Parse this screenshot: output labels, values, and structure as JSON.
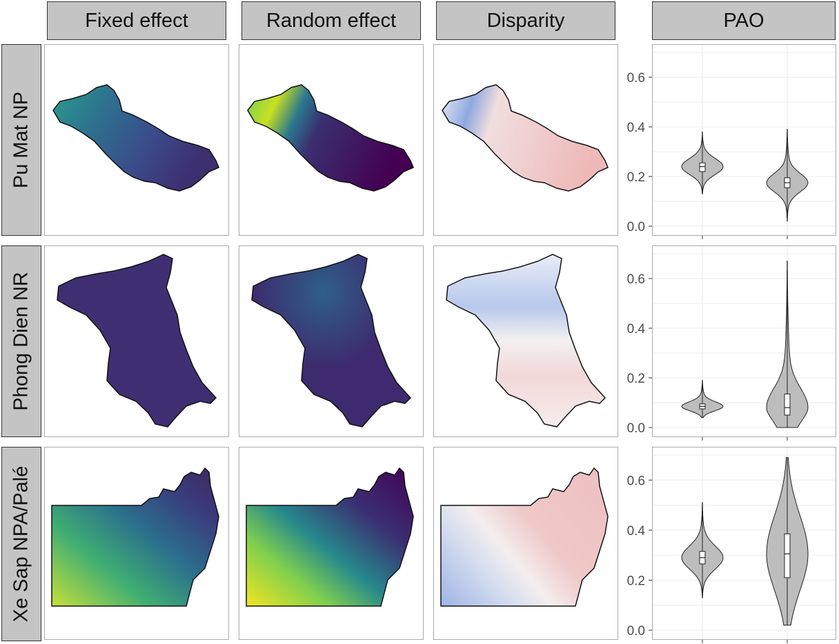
{
  "columns": [
    "Fixed effect",
    "Random effect",
    "Disparity",
    "PAO"
  ],
  "rows": [
    "Pu Mat NP",
    "Phong Dien NR",
    "Xe Sap NPA/Palé"
  ],
  "colors": {
    "strip_fill": "#c4c4c4",
    "viridis_low": "#440154",
    "viridis_mid": "#21908c",
    "viridis_high": "#fde725",
    "disparity_low": "#6a8fd8",
    "disparity_mid": "#f7f7f7",
    "disparity_high": "#e07a7a",
    "violin_fill": "#bdbdbd"
  },
  "chart_data": {
    "type": "violin",
    "ylim": [
      0,
      0.7
    ],
    "yticks": [
      0.0,
      0.2,
      0.4,
      0.6
    ],
    "ytick_labels": [
      "0.0",
      "0.2",
      "0.4",
      "0.6"
    ],
    "panels": [
      {
        "row": "Pu Mat NP",
        "violins": [
          {
            "min": 0.13,
            "q1": 0.22,
            "median": 0.24,
            "q3": 0.255,
            "max": 0.38
          },
          {
            "min": 0.02,
            "q1": 0.155,
            "median": 0.175,
            "q3": 0.195,
            "max": 0.39
          }
        ]
      },
      {
        "row": "Phong Dien NR",
        "violins": [
          {
            "min": 0.04,
            "q1": 0.075,
            "median": 0.085,
            "q3": 0.095,
            "max": 0.19
          },
          {
            "min": 0.0,
            "q1": 0.05,
            "median": 0.08,
            "q3": 0.135,
            "max": 0.67
          }
        ]
      },
      {
        "row": "Xe Sap NPA/Palé",
        "violins": [
          {
            "min": 0.13,
            "q1": 0.265,
            "median": 0.29,
            "q3": 0.315,
            "max": 0.51
          },
          {
            "min": 0.02,
            "q1": 0.21,
            "median": 0.305,
            "q3": 0.385,
            "max": 0.69
          }
        ]
      }
    ]
  }
}
